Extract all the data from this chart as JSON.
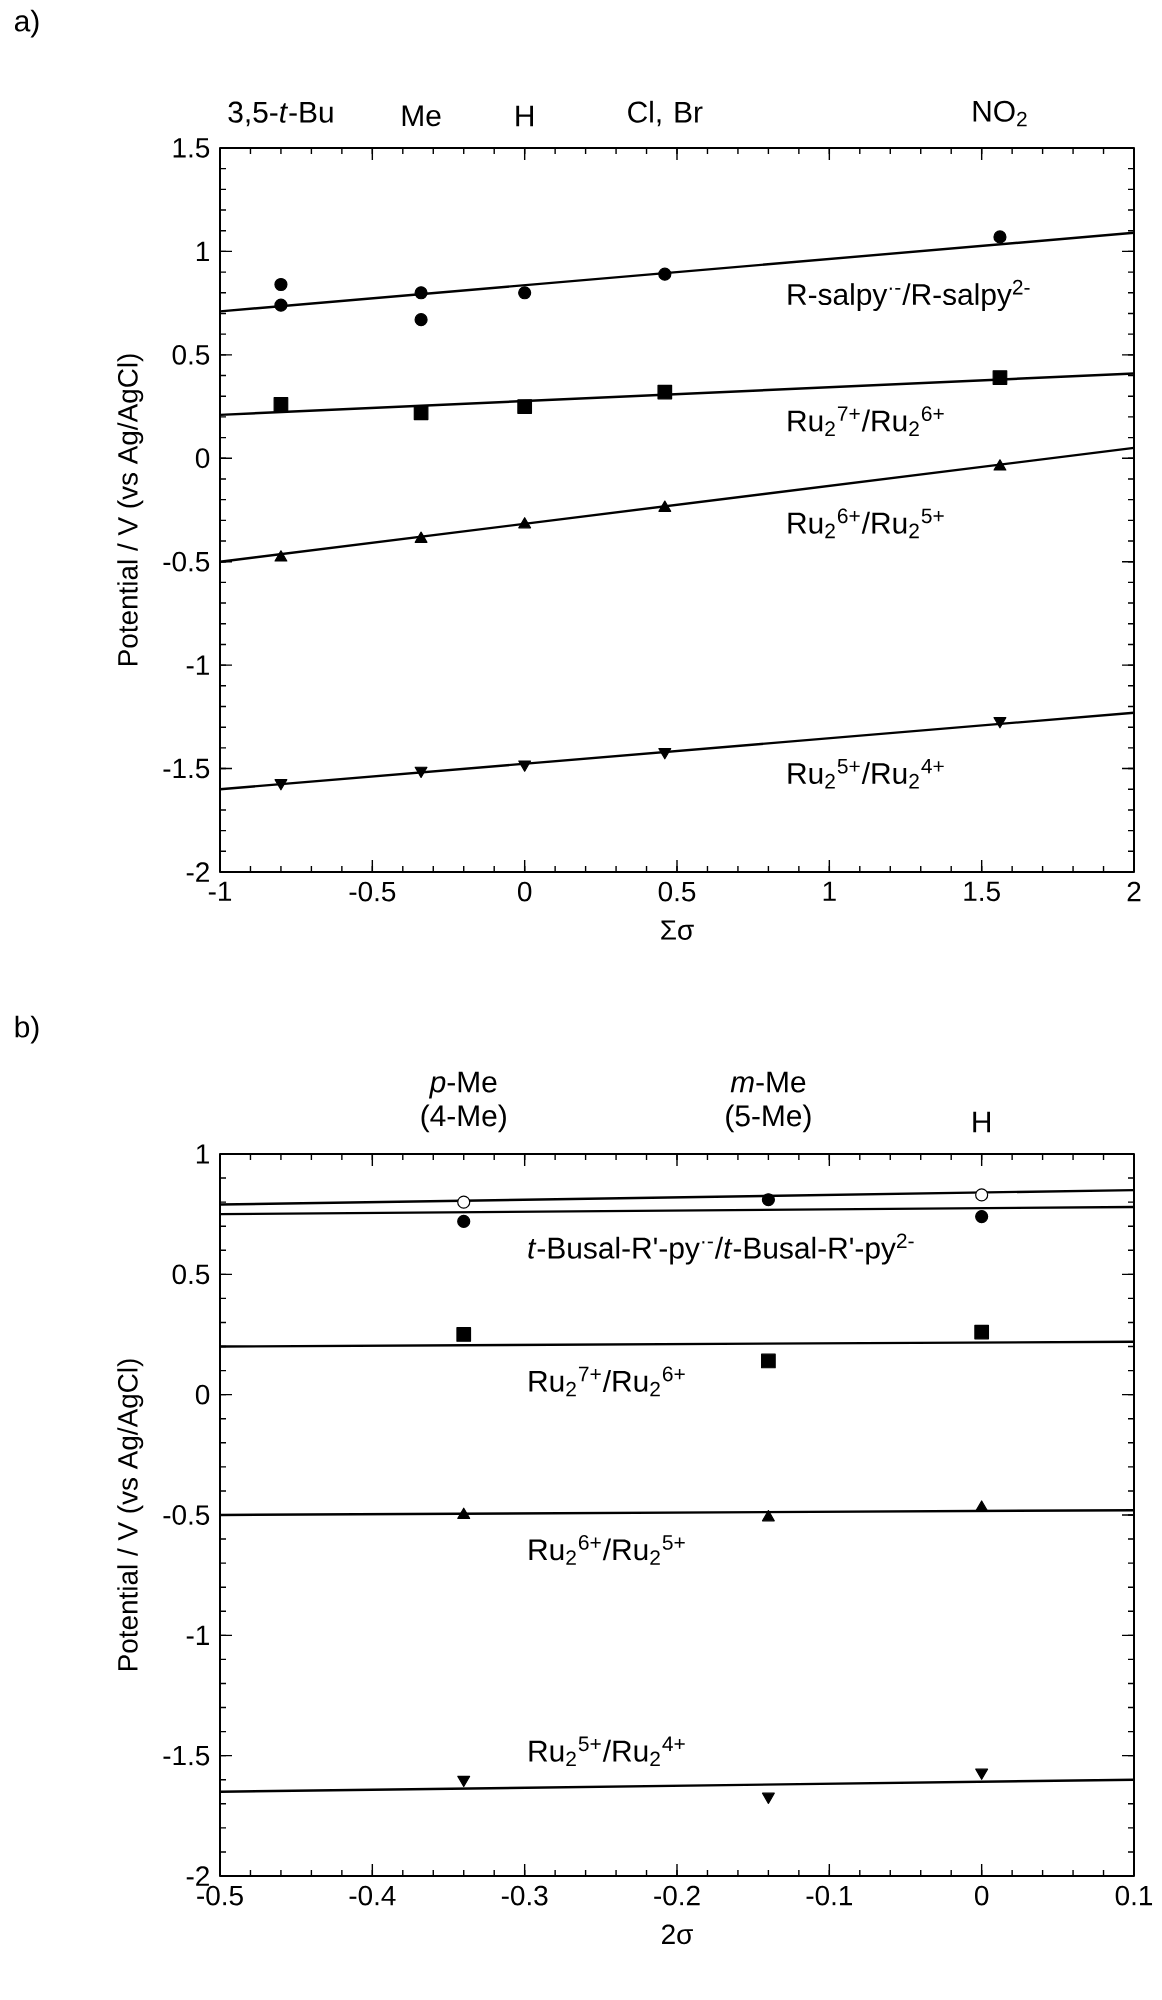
{
  "chart_data": [
    {
      "type": "scatter",
      "xlabel": "Σσ",
      "ylabel": "Potential / V (vs Ag/AgCl)",
      "annotations": [
        "a)",
        "3,5-*t*-Bu",
        "Me",
        "H",
        "Cl, Br",
        "NO$_{2}$"
      ],
      "xlim": [
        -1,
        2
      ],
      "xticks": [
        -1,
        -0.5,
        0,
        0.5,
        1,
        1.5,
        2
      ],
      "ylim": [
        -2,
        1.5
      ],
      "yticks": [
        -2,
        -1.5,
        -1,
        -0.5,
        0,
        0.5,
        1,
        1.5
      ],
      "series": [
        {
          "name": "R-salpy$^{·-}$/R-salpy$^{2-}$",
          "marker": "circle",
          "color": "#000000",
          "x": [
            -0.8,
            -0.8,
            -0.34,
            -0.34,
            0,
            0.46,
            1.56
          ],
          "values": [
            0.84,
            0.74,
            0.8,
            0.67,
            0.8,
            0.89,
            1.07
          ]
        },
        {
          "type": "line",
          "marker": "none",
          "color": "#000000",
          "x": [
            -1,
            2
          ],
          "values": [
            0.71,
            1.09
          ]
        },
        {
          "name": "Ru$_{2}$$^{7+}$/Ru$_{2}$$^{6+}$",
          "type": "scatter",
          "marker": "square",
          "color": "#000000",
          "x": [
            -0.8,
            -0.34,
            0,
            0.46,
            1.56
          ],
          "values": [
            0.26,
            0.22,
            0.25,
            0.32,
            0.39
          ]
        },
        {
          "type": "line",
          "marker": "none",
          "color": "#000000",
          "x": [
            -1,
            2
          ],
          "values": [
            0.21,
            0.41
          ]
        },
        {
          "name": "Ru$_{2}$$^{6+}$/Ru$_{2}$$^{5+}$",
          "type": "scatter",
          "marker": "triangle",
          "color": "#000000",
          "x": [
            -0.8,
            -0.34,
            0,
            0.46,
            1.56
          ],
          "values": [
            -0.48,
            -0.39,
            -0.32,
            -0.24,
            -0.04
          ]
        },
        {
          "type": "line",
          "marker": "none",
          "color": "#000000",
          "x": [
            -1,
            2
          ],
          "values": [
            -0.5,
            0.05
          ]
        },
        {
          "name": "Ru$_{2}$$^{5+}$/Ru$_{2}$$^{4+}$",
          "type": "scatter",
          "marker": "triangle-down",
          "color": "#000000",
          "x": [
            -0.8,
            -0.34,
            0,
            0.46,
            1.56
          ],
          "values": [
            -1.57,
            -1.51,
            -1.48,
            -1.42,
            -1.27
          ]
        },
        {
          "type": "line",
          "marker": "none",
          "color": "#000000",
          "x": [
            -1,
            2
          ],
          "values": [
            -1.6,
            -1.23
          ]
        }
      ]
    },
    {
      "type": "scatter",
      "xlabel": "2σ",
      "ylabel": "Potential / V (vs Ag/AgCl)",
      "annotations": [
        "b)",
        "*p*-Me (4-Me)",
        "*m*-Me (5-Me)",
        "H"
      ],
      "xlim": [
        -0.5,
        0.1
      ],
      "xticks": [
        -0.5,
        -0.4,
        -0.3,
        -0.2,
        -0.1,
        0,
        0.1
      ],
      "ylim": [
        -2,
        1
      ],
      "yticks": [
        -2,
        -1.5,
        -1,
        -0.5,
        0,
        0.5,
        1
      ],
      "series": [
        {
          "marker": "circle",
          "color": "#ffffff",
          "x": [
            -0.34,
            0
          ],
          "values": [
            0.8,
            0.83
          ]
        },
        {
          "type": "line",
          "marker": "none",
          "color": "#000000",
          "x": [
            -0.5,
            0.1
          ],
          "values": [
            0.79,
            0.85
          ]
        },
        {
          "name": "*t*-Busal-R'-py$^{·-}$/*t*-Busal-R'-py$^{2-}$",
          "type": "scatter",
          "marker": "circle",
          "color": "#000000",
          "x": [
            -0.34,
            -0.14,
            0
          ],
          "values": [
            0.72,
            0.81,
            0.74
          ]
        },
        {
          "type": "line",
          "marker": "none",
          "color": "#000000",
          "x": [
            -0.5,
            0.1
          ],
          "values": [
            0.75,
            0.78
          ]
        },
        {
          "name": "Ru$_{2}$$^{7+}$/Ru$_{2}$$^{6+}$",
          "type": "scatter",
          "marker": "square",
          "color": "#000000",
          "x": [
            -0.34,
            -0.14,
            0
          ],
          "values": [
            0.25,
            0.14,
            0.26
          ]
        },
        {
          "type": "line",
          "marker": "none",
          "color": "#000000",
          "x": [
            -0.5,
            0.1
          ],
          "values": [
            0.2,
            0.22
          ]
        },
        {
          "name": "Ru$_{2}$$^{6+}$/Ru$_{2}$$^{5+}$",
          "type": "scatter",
          "marker": "triangle",
          "color": "#000000",
          "x": [
            -0.34,
            -0.14,
            0
          ],
          "values": [
            -0.5,
            -0.51,
            -0.47
          ]
        },
        {
          "type": "line",
          "marker": "none",
          "color": "#000000",
          "x": [
            -0.5,
            0.1
          ],
          "values": [
            -0.5,
            -0.48
          ]
        },
        {
          "name": "Ru$_{2}$$^{5+}$/Ru$_{2}$$^{4+}$",
          "type": "scatter",
          "marker": "triangle-down",
          "color": "#000000",
          "x": [
            -0.34,
            -0.14,
            0
          ],
          "values": [
            -1.6,
            -1.67,
            -1.57
          ]
        },
        {
          "type": "line",
          "marker": "none",
          "color": "#000000",
          "x": [
            -0.5,
            0.1
          ],
          "values": [
            -1.65,
            -1.6
          ]
        }
      ]
    }
  ]
}
